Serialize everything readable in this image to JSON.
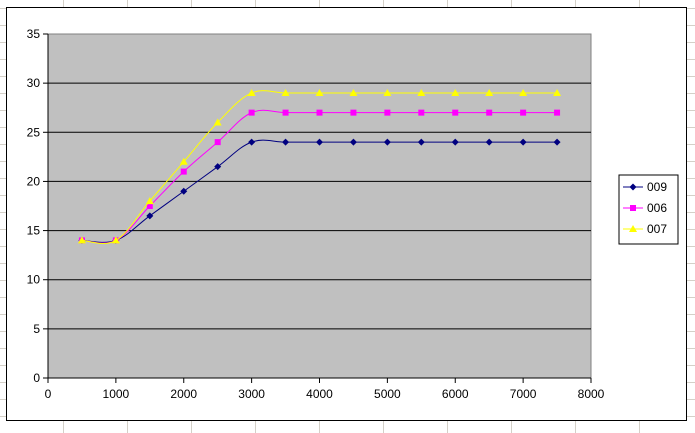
{
  "chart_data": {
    "type": "line",
    "title": "",
    "xlabel": "",
    "ylabel": "",
    "xlim": [
      0,
      8000
    ],
    "ylim": [
      0,
      35
    ],
    "x_ticks": [
      0,
      1000,
      2000,
      3000,
      4000,
      5000,
      6000,
      7000,
      8000
    ],
    "x_tick_labels": [
      "0",
      "1000",
      "2000",
      "3000",
      "4000",
      "5000",
      "6000",
      "7000",
      "8000"
    ],
    "y_ticks": [
      0,
      5,
      10,
      15,
      20,
      25,
      30,
      35
    ],
    "y_tick_labels": [
      "0",
      "5",
      "10",
      "15",
      "20",
      "25",
      "30",
      "35"
    ],
    "grid": "horizontal major gridlines",
    "plot_background": "#c0c0c0",
    "legend_position": "right",
    "x": [
      500,
      1000,
      1500,
      2000,
      2500,
      3000,
      3500,
      4000,
      4500,
      5000,
      5500,
      6000,
      6500,
      7000,
      7500
    ],
    "series": [
      {
        "name": "009",
        "color": "#000080",
        "marker": "diamond",
        "values": [
          14,
          14,
          16.5,
          19,
          21.5,
          24,
          24,
          24,
          24,
          24,
          24,
          24,
          24,
          24,
          24
        ]
      },
      {
        "name": "006",
        "color": "#ff00ff",
        "marker": "square",
        "values": [
          14,
          14,
          17.5,
          21,
          24,
          27,
          27,
          27,
          27,
          27,
          27,
          27,
          27,
          27,
          27
        ]
      },
      {
        "name": "007",
        "color": "#ffff00",
        "marker": "triangle",
        "values": [
          14,
          14,
          18,
          22,
          26,
          29,
          29,
          29,
          29,
          29,
          29,
          29,
          29,
          29,
          29
        ]
      }
    ]
  }
}
